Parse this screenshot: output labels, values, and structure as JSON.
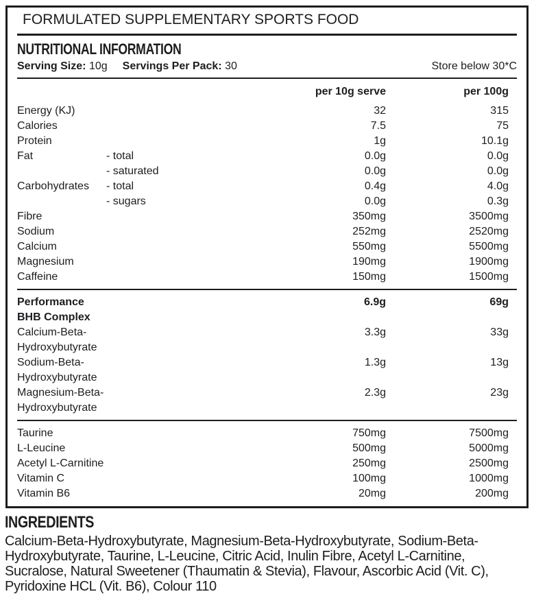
{
  "header": {
    "classification": "FORMULATED SUPPLEMENTARY SPORTS FOOD",
    "title": "NUTRITIONAL INFORMATION",
    "serving_size_label": "Serving Size:",
    "serving_size_value": "10g",
    "servings_per_pack_label": "Servings Per Pack:",
    "servings_per_pack_value": "30",
    "storage": "Store below 30*C"
  },
  "table": {
    "columns": [
      "per 10g serve",
      "per 100g"
    ],
    "sections": [
      {
        "rows": [
          {
            "name": "Energy (KJ)",
            "sub": "",
            "per_serve": "32",
            "per_100g": "315",
            "bold": false
          },
          {
            "name": "Calories",
            "sub": "",
            "per_serve": "7.5",
            "per_100g": "75",
            "bold": false
          },
          {
            "name": "Protein",
            "sub": "",
            "per_serve": "1g",
            "per_100g": "10.1g",
            "bold": false
          },
          {
            "name": "Fat",
            "sub": "- total",
            "per_serve": "0.0g",
            "per_100g": "0.0g",
            "bold": false
          },
          {
            "name": "",
            "sub": "- saturated",
            "per_serve": "0.0g",
            "per_100g": "0.0g",
            "bold": false
          },
          {
            "name": "Carbohydrates",
            "sub": "- total",
            "per_serve": "0.4g",
            "per_100g": "4.0g",
            "bold": false
          },
          {
            "name": "",
            "sub": "- sugars",
            "per_serve": "0.0g",
            "per_100g": "0.3g",
            "bold": false
          },
          {
            "name": "Fibre",
            "sub": "",
            "per_serve": "350mg",
            "per_100g": "3500mg",
            "bold": false
          },
          {
            "name": "Sodium",
            "sub": "",
            "per_serve": "252mg",
            "per_100g": "2520mg",
            "bold": false
          },
          {
            "name": "Calcium",
            "sub": "",
            "per_serve": "550mg",
            "per_100g": "5500mg",
            "bold": false
          },
          {
            "name": "Magnesium",
            "sub": "",
            "per_serve": "190mg",
            "per_100g": "1900mg",
            "bold": false
          },
          {
            "name": "Caffeine",
            "sub": "",
            "per_serve": "150mg",
            "per_100g": "1500mg",
            "bold": false
          }
        ]
      },
      {
        "rows": [
          {
            "name": "Performance BHB Complex",
            "sub": "",
            "per_serve": "6.9g",
            "per_100g": "69g",
            "bold": true
          },
          {
            "name": "Calcium-Beta-Hydroxybutyrate",
            "sub": "",
            "per_serve": "3.3g",
            "per_100g": "33g",
            "bold": false
          },
          {
            "name": "Sodium-Beta-Hydroxybutyrate",
            "sub": "",
            "per_serve": "1.3g",
            "per_100g": "13g",
            "bold": false
          },
          {
            "name": "Magnesium-Beta-Hydroxybutyrate",
            "sub": "",
            "per_serve": "2.3g",
            "per_100g": "23g",
            "bold": false
          }
        ]
      },
      {
        "rows": [
          {
            "name": "Taurine",
            "sub": "",
            "per_serve": "750mg",
            "per_100g": "7500mg",
            "bold": false
          },
          {
            "name": "L-Leucine",
            "sub": "",
            "per_serve": "500mg",
            "per_100g": "5000mg",
            "bold": false
          },
          {
            "name": "Acetyl L-Carnitine",
            "sub": "",
            "per_serve": "250mg",
            "per_100g": "2500mg",
            "bold": false
          },
          {
            "name": "Vitamin C",
            "sub": "",
            "per_serve": "100mg",
            "per_100g": "1000mg",
            "bold": false
          },
          {
            "name": "Vitamin B6",
            "sub": "",
            "per_serve": "20mg",
            "per_100g": "200mg",
            "bold": false
          }
        ]
      }
    ]
  },
  "ingredients": {
    "title": "INGREDIENTS",
    "text": "Calcium-Beta-Hydroxybutyrate, Magnesium-Beta-Hydroxybutyrate, Sodium-Beta-Hydroxybutyrate, Taurine, L-Leucine, Citric Acid, Inulin Fibre, Acetyl L-Carnitine, Sucralose, Natural Sweetener (Thaumatin & Stevia), Flavour, Ascorbic Acid (Vit. C), Pyridoxine HCL (Vit. B6), Colour 110"
  },
  "colors": {
    "ink": "#1d1d1f",
    "background": "#ffffff"
  }
}
